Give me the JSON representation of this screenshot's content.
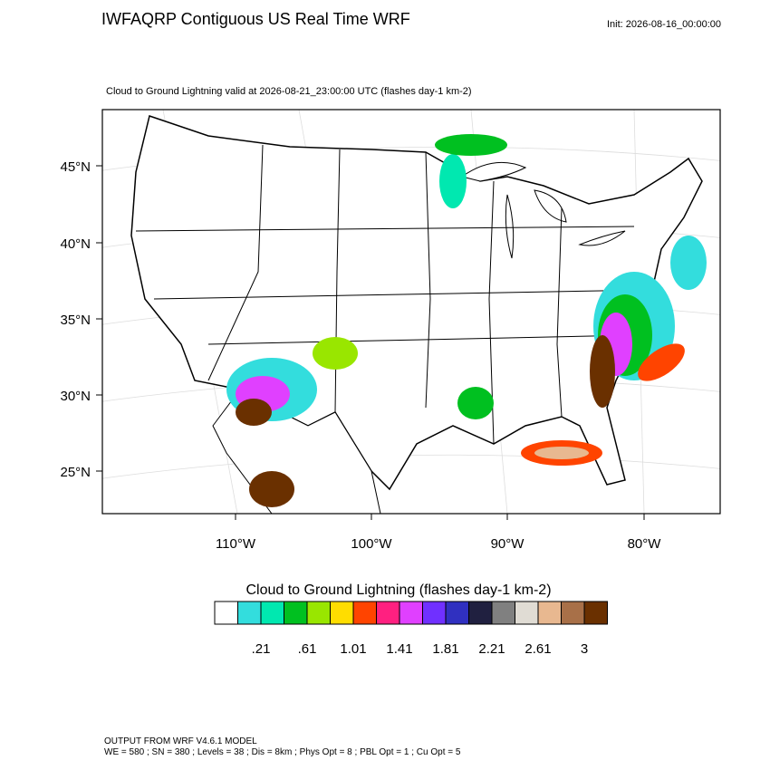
{
  "header": {
    "title": "IWFAQRP Contiguous US Real Time WRF",
    "init": "Init: 2026-08-16_00:00:00"
  },
  "map": {
    "subtitle": "Cloud to Ground Lightning valid at 2026-08-21_23:00:00 UTC   (flashes day-1 km-2)",
    "lat_labels": [
      "45°N",
      "40°N",
      "35°N",
      "30°N",
      "25°N"
    ],
    "lon_labels": [
      "110°W",
      "100°W",
      "90°W",
      "80°W"
    ]
  },
  "colorbar": {
    "title": "Cloud to Ground Lightning  (flashes day-1 km-2)",
    "colors": [
      "#ffffff",
      "#33dddd",
      "#00e8b0",
      "#00c020",
      "#99e600",
      "#ffdd00",
      "#ff4400",
      "#ff2080",
      "#e040ff",
      "#7030ff",
      "#3030c0",
      "#202040",
      "#808080",
      "#e0dcd4",
      "#e8b890",
      "#a87048",
      "#6a3000"
    ],
    "labels": [
      ".21",
      ".61",
      "1.01",
      "1.41",
      "1.81",
      "2.21",
      "2.61",
      "3"
    ]
  },
  "footer": {
    "line1": "OUTPUT FROM WRF V4.6.1 MODEL",
    "line2": "WE = 580 ; SN = 380 ; Levels = 38 ; Dis = 8km ; Phys Opt = 8 ; PBL Opt = 1 ; Cu Opt = 5"
  }
}
